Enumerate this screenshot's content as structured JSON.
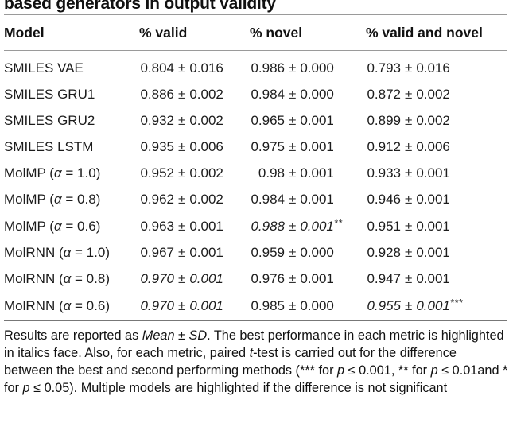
{
  "title": "based generators in output validity",
  "table": {
    "columns": [
      "Model",
      "% valid",
      "% novel",
      "% valid and novel"
    ],
    "plus_minus": "±",
    "rows": [
      {
        "model": "SMILES VAE",
        "valid": {
          "mean": "0.804",
          "sd": "0.016",
          "italic": false,
          "stars": ""
        },
        "novel": {
          "mean": "0.986",
          "sd": "0.000",
          "italic": false,
          "stars": ""
        },
        "valid_and_novel": {
          "mean": "0.793",
          "sd": "0.016",
          "italic": false,
          "stars": ""
        }
      },
      {
        "model": "SMILES GRU1",
        "valid": {
          "mean": "0.886",
          "sd": "0.002",
          "italic": false,
          "stars": ""
        },
        "novel": {
          "mean": "0.984",
          "sd": "0.000",
          "italic": false,
          "stars": ""
        },
        "valid_and_novel": {
          "mean": "0.872",
          "sd": "0.002",
          "italic": false,
          "stars": ""
        }
      },
      {
        "model": "SMILES GRU2",
        "valid": {
          "mean": "0.932",
          "sd": "0.002",
          "italic": false,
          "stars": ""
        },
        "novel": {
          "mean": "0.965",
          "sd": "0.001",
          "italic": false,
          "stars": ""
        },
        "valid_and_novel": {
          "mean": "0.899",
          "sd": "0.002",
          "italic": false,
          "stars": ""
        }
      },
      {
        "model": "SMILES LSTM",
        "valid": {
          "mean": "0.935",
          "sd": "0.006",
          "italic": false,
          "stars": ""
        },
        "novel": {
          "mean": "0.975",
          "sd": "0.001",
          "italic": false,
          "stars": ""
        },
        "valid_and_novel": {
          "mean": "0.912",
          "sd": "0.006",
          "italic": false,
          "stars": ""
        }
      },
      {
        "model": "MolMP (α = 1.0)",
        "valid": {
          "mean": "0.952",
          "sd": "0.002",
          "italic": false,
          "stars": ""
        },
        "novel": {
          "mean": "0.98",
          "sd": "0.001",
          "italic": false,
          "stars": ""
        },
        "valid_and_novel": {
          "mean": "0.933",
          "sd": "0.001",
          "italic": false,
          "stars": ""
        }
      },
      {
        "model": "MolMP (α = 0.8)",
        "valid": {
          "mean": "0.962",
          "sd": "0.002",
          "italic": false,
          "stars": ""
        },
        "novel": {
          "mean": "0.984",
          "sd": "0.001",
          "italic": false,
          "stars": ""
        },
        "valid_and_novel": {
          "mean": "0.946",
          "sd": "0.001",
          "italic": false,
          "stars": ""
        }
      },
      {
        "model": "MolMP (α = 0.6)",
        "valid": {
          "mean": "0.963",
          "sd": "0.001",
          "italic": false,
          "stars": ""
        },
        "novel": {
          "mean": "0.988",
          "sd": "0.001",
          "italic": true,
          "stars": "**"
        },
        "valid_and_novel": {
          "mean": "0.951",
          "sd": "0.001",
          "italic": false,
          "stars": ""
        }
      },
      {
        "model": "MolRNN (α = 1.0)",
        "valid": {
          "mean": "0.967",
          "sd": "0.001",
          "italic": false,
          "stars": ""
        },
        "novel": {
          "mean": "0.959",
          "sd": "0.000",
          "italic": false,
          "stars": ""
        },
        "valid_and_novel": {
          "mean": "0.928",
          "sd": "0.001",
          "italic": false,
          "stars": ""
        }
      },
      {
        "model": "MolRNN (α = 0.8)",
        "valid": {
          "mean": "0.970",
          "sd": "0.001",
          "italic": true,
          "stars": ""
        },
        "novel": {
          "mean": "0.976",
          "sd": "0.001",
          "italic": false,
          "stars": ""
        },
        "valid_and_novel": {
          "mean": "0.947",
          "sd": "0.001",
          "italic": false,
          "stars": ""
        }
      },
      {
        "model": "MolRNN (α = 0.6)",
        "valid": {
          "mean": "0.970",
          "sd": "0.001",
          "italic": true,
          "stars": ""
        },
        "novel": {
          "mean": "0.985",
          "sd": "0.000",
          "italic": false,
          "stars": ""
        },
        "valid_and_novel": {
          "mean": "0.955",
          "sd": "0.001",
          "italic": true,
          "stars": "***"
        }
      }
    ]
  },
  "footnote": {
    "segments": [
      {
        "text": "Results are reported as ",
        "italic": false
      },
      {
        "text": "Mean ± SD",
        "italic": true
      },
      {
        "text": ". The best performance in each metric is highlighted in italics face. Also, for each metric, paired ",
        "italic": false
      },
      {
        "text": "t",
        "italic": true
      },
      {
        "text": "-test is carried out for the difference between the best and second performing methods (*** for ",
        "italic": false
      },
      {
        "text": "p",
        "italic": true
      },
      {
        "text": " ≤ 0.001, ** for ",
        "italic": false
      },
      {
        "text": "p",
        "italic": true
      },
      {
        "text": " ≤ 0.01and * for ",
        "italic": false
      },
      {
        "text": "p",
        "italic": true
      },
      {
        "text": " ≤ 0.05). Multiple models are highlighted if the difference is not significant",
        "italic": false
      }
    ]
  }
}
